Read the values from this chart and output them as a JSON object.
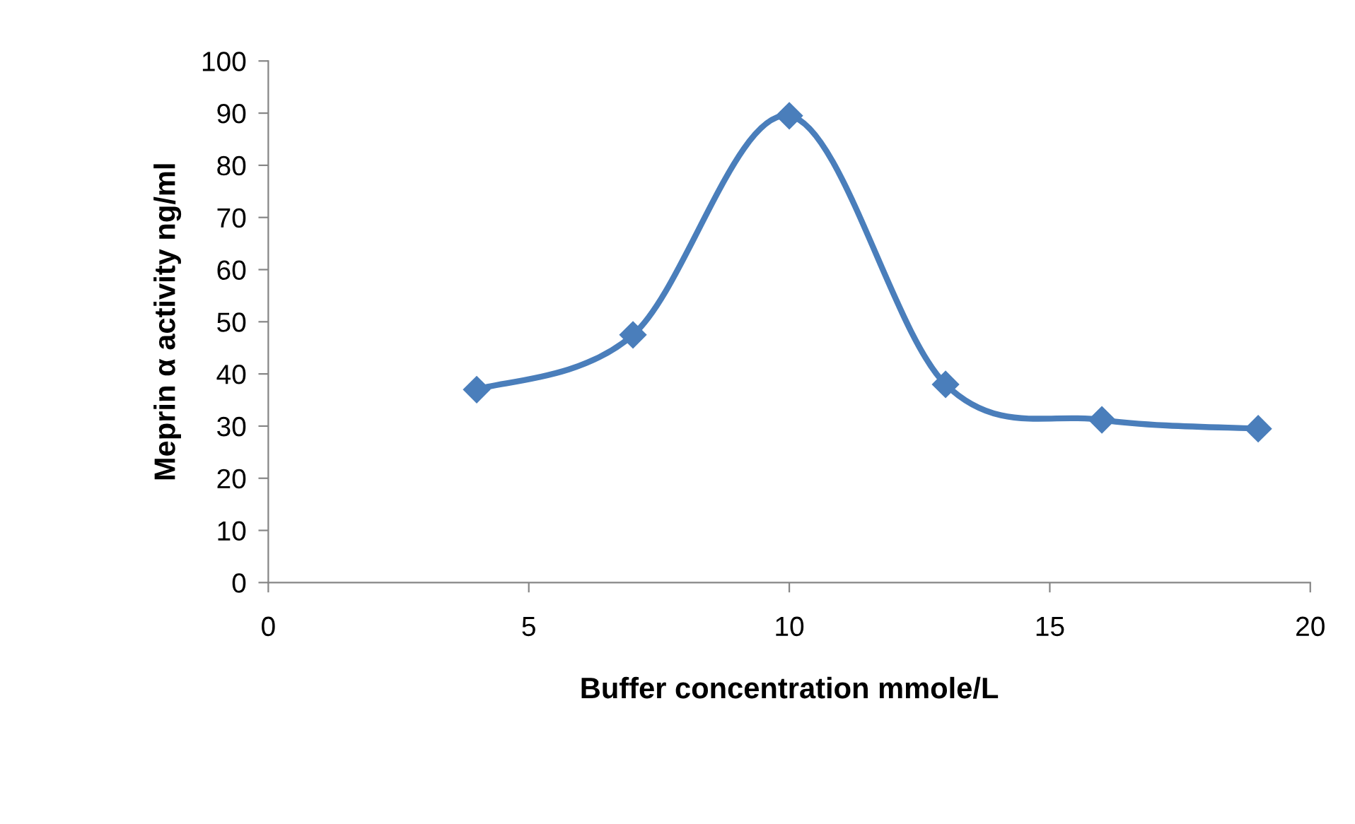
{
  "chart_data": {
    "type": "line",
    "xlabel": "Buffer concentration mmole/L",
    "ylabel": "Meprin α activity ng/ml",
    "x": [
      4,
      7,
      10,
      13,
      16,
      19
    ],
    "series": [
      {
        "color": "#4a7ebb",
        "values": [
          37,
          47.5,
          89.5,
          38,
          31.2,
          29.5
        ]
      }
    ],
    "xlim": [
      0,
      20
    ],
    "xticks": [
      0,
      5,
      10,
      15,
      20
    ],
    "ylim": [
      0,
      100
    ],
    "yticks": [
      0,
      10,
      20,
      30,
      40,
      50,
      60,
      70,
      80,
      90,
      100
    ],
    "marker": "diamond",
    "line_style": "solid",
    "grid": false,
    "legend": false
  }
}
